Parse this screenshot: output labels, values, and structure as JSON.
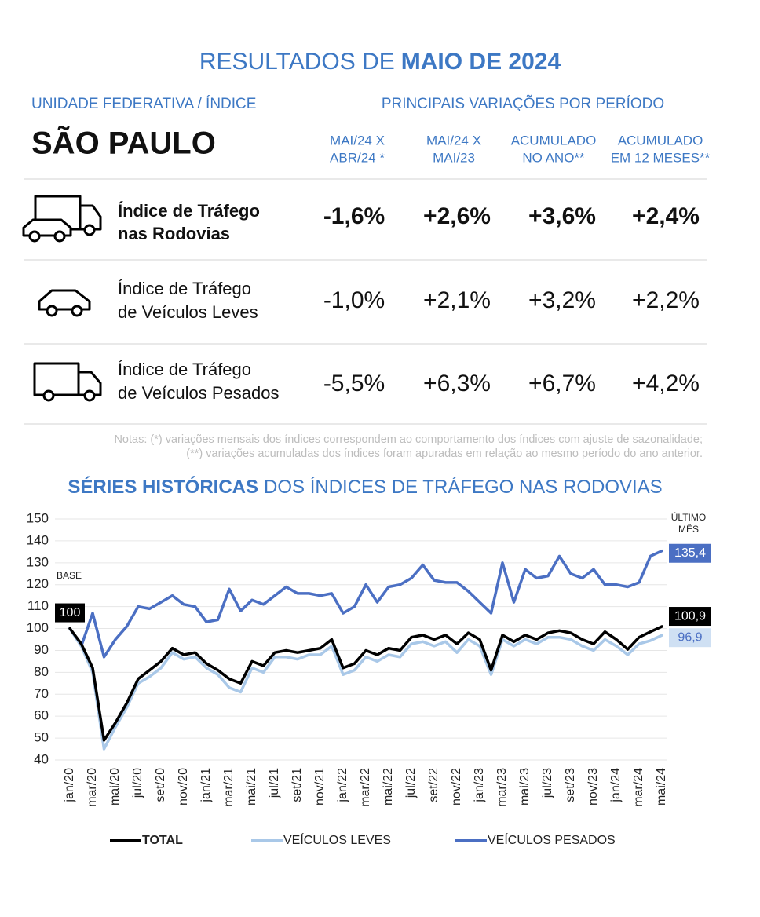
{
  "header": {
    "title": "RESULTADOS DE",
    "title_bold": "MAIO DE 2024"
  },
  "table": {
    "unit_label": "UNIDADE FEDERATIVA / ÍNDICE",
    "variations_label": "PRINCIPAIS VARIAÇÕES POR PERÍODO",
    "state": "SÃO PAULO",
    "columns": [
      [
        "MAI/24 X",
        "ABR/24 *"
      ],
      [
        "MAI/24 X",
        "MAI/23"
      ],
      [
        "ACUMULADO",
        "NO ANO**"
      ],
      [
        "ACUMULADO",
        "EM 12 MESES**"
      ]
    ],
    "rows": [
      {
        "label": [
          "Índice de Tráfego",
          "nas Rodovias"
        ],
        "values": [
          "-1,6%",
          "+2,6%",
          "+3,6%",
          "+2,4%"
        ]
      },
      {
        "label": [
          "Índice de Tráfego",
          "de Veículos Leves"
        ],
        "values": [
          "-1,0%",
          "+2,1%",
          "+3,2%",
          "+2,2%"
        ]
      },
      {
        "label": [
          "Índice de Tráfego",
          "de Veículos Pesados"
        ],
        "values": [
          "-5,5%",
          "+6,3%",
          "+6,7%",
          "+4,2%"
        ]
      }
    ]
  },
  "notes": [
    "Notas: (*) variações mensais dos índices correspondem ao comportamento dos índices com ajuste de sazonalidade;",
    "(**) variações acumuladas dos índices foram apuradas em relação ao mesmo período do ano anterior."
  ],
  "chart_data": {
    "type": "line",
    "title_bold": "SÉRIES HISTÓRICAS",
    "title": "DOS ÍNDICES DE TRÁFEGO NAS RODOVIAS",
    "annotations": {
      "base": "BASE",
      "last_month": [
        "ÚLTIMO",
        "MÊS"
      ]
    },
    "categories": [
      "jan/20",
      null,
      "mar/20",
      null,
      "mai/20",
      null,
      "jul/20",
      null,
      "set/20",
      null,
      "nov/20",
      null,
      "jan/21",
      null,
      "mar/21",
      null,
      "mai/21",
      null,
      "jul/21",
      null,
      "set/21",
      null,
      "nov/21",
      null,
      "jan/22",
      null,
      "mar/22",
      null,
      "mai/22",
      null,
      "jul/22",
      null,
      "set/22",
      null,
      "nov/22",
      null,
      "jan/23",
      null,
      "mar/23",
      null,
      "mai/23",
      null,
      "jul/23",
      null,
      "set/23",
      null,
      "nov/23",
      null,
      "jan/24",
      null,
      "mar/24",
      null,
      "mai/24"
    ],
    "ylim": [
      40,
      150
    ],
    "yticks": [
      40,
      50,
      60,
      70,
      80,
      90,
      100,
      110,
      120,
      130,
      140,
      150
    ],
    "grid": true,
    "series": [
      {
        "name": "TOTAL",
        "color": "#000000",
        "values": [
          100,
          93,
          82,
          49,
          57,
          66,
          77,
          81,
          85,
          91,
          88,
          89,
          84,
          81,
          77,
          75,
          85,
          83,
          89,
          90,
          89,
          90,
          91,
          95,
          82,
          84,
          90,
          88,
          91,
          90,
          96,
          97,
          95,
          97,
          93,
          98,
          95,
          81,
          97,
          94,
          97,
          95,
          98,
          99,
          98,
          95,
          93,
          98.5,
          95,
          90.5,
          96,
          98.5,
          100.9
        ],
        "value_labels": [
          null,
          null,
          null,
          null,
          null,
          null,
          null,
          null,
          null,
          null,
          null,
          null,
          null,
          null,
          null,
          null,
          null,
          null,
          null,
          null,
          null,
          null,
          null,
          null,
          null,
          null,
          null,
          null,
          null,
          null,
          null,
          null,
          null,
          null,
          null,
          null,
          null,
          null,
          null,
          null,
          null,
          null,
          null,
          null,
          null,
          null,
          null,
          null,
          null,
          null,
          null,
          null,
          "100,9"
        ]
      },
      {
        "name": "VEÍCULOS LEVES",
        "color": "#a9c8e8",
        "values": [
          100,
          92,
          80,
          45,
          55,
          64,
          75,
          78,
          82,
          89,
          86,
          87,
          82,
          79,
          73,
          71,
          82,
          80,
          87,
          87,
          86,
          88,
          88,
          92,
          79,
          81,
          87,
          85,
          88,
          87,
          93,
          94,
          92,
          94,
          89,
          95,
          92,
          79,
          95,
          92,
          95,
          93,
          96,
          96,
          95,
          92,
          90,
          95,
          92,
          88,
          93,
          94.5,
          96.9
        ],
        "value_labels": [
          null,
          null,
          null,
          null,
          null,
          null,
          null,
          null,
          null,
          null,
          null,
          null,
          null,
          null,
          null,
          null,
          null,
          null,
          null,
          null,
          null,
          null,
          null,
          null,
          null,
          null,
          null,
          null,
          null,
          null,
          null,
          null,
          null,
          null,
          null,
          null,
          null,
          null,
          null,
          null,
          null,
          null,
          null,
          null,
          null,
          null,
          null,
          null,
          null,
          null,
          null,
          null,
          "96,9"
        ]
      },
      {
        "name": "VEÍCULOS PESADOS",
        "color": "#4b6fc3",
        "values": [
          100,
          92,
          107,
          87,
          95,
          101,
          110,
          109,
          112,
          115,
          111,
          110,
          103,
          104,
          118,
          108,
          113,
          111,
          115,
          119,
          116,
          116,
          115,
          116,
          107,
          110,
          120,
          112,
          119,
          120,
          123,
          129,
          122,
          121,
          121,
          117,
          112,
          107,
          130,
          112,
          127,
          123,
          124,
          133,
          125,
          123,
          127,
          120,
          120,
          119,
          121,
          133,
          135.4
        ],
        "value_labels": [
          null,
          null,
          null,
          null,
          null,
          null,
          null,
          null,
          null,
          null,
          null,
          null,
          null,
          null,
          null,
          null,
          null,
          null,
          null,
          null,
          null,
          null,
          null,
          null,
          null,
          null,
          null,
          null,
          null,
          null,
          null,
          null,
          null,
          null,
          null,
          null,
          null,
          null,
          null,
          null,
          null,
          null,
          null,
          null,
          null,
          null,
          null,
          null,
          null,
          null,
          null,
          null,
          "135,4"
        ]
      }
    ]
  }
}
